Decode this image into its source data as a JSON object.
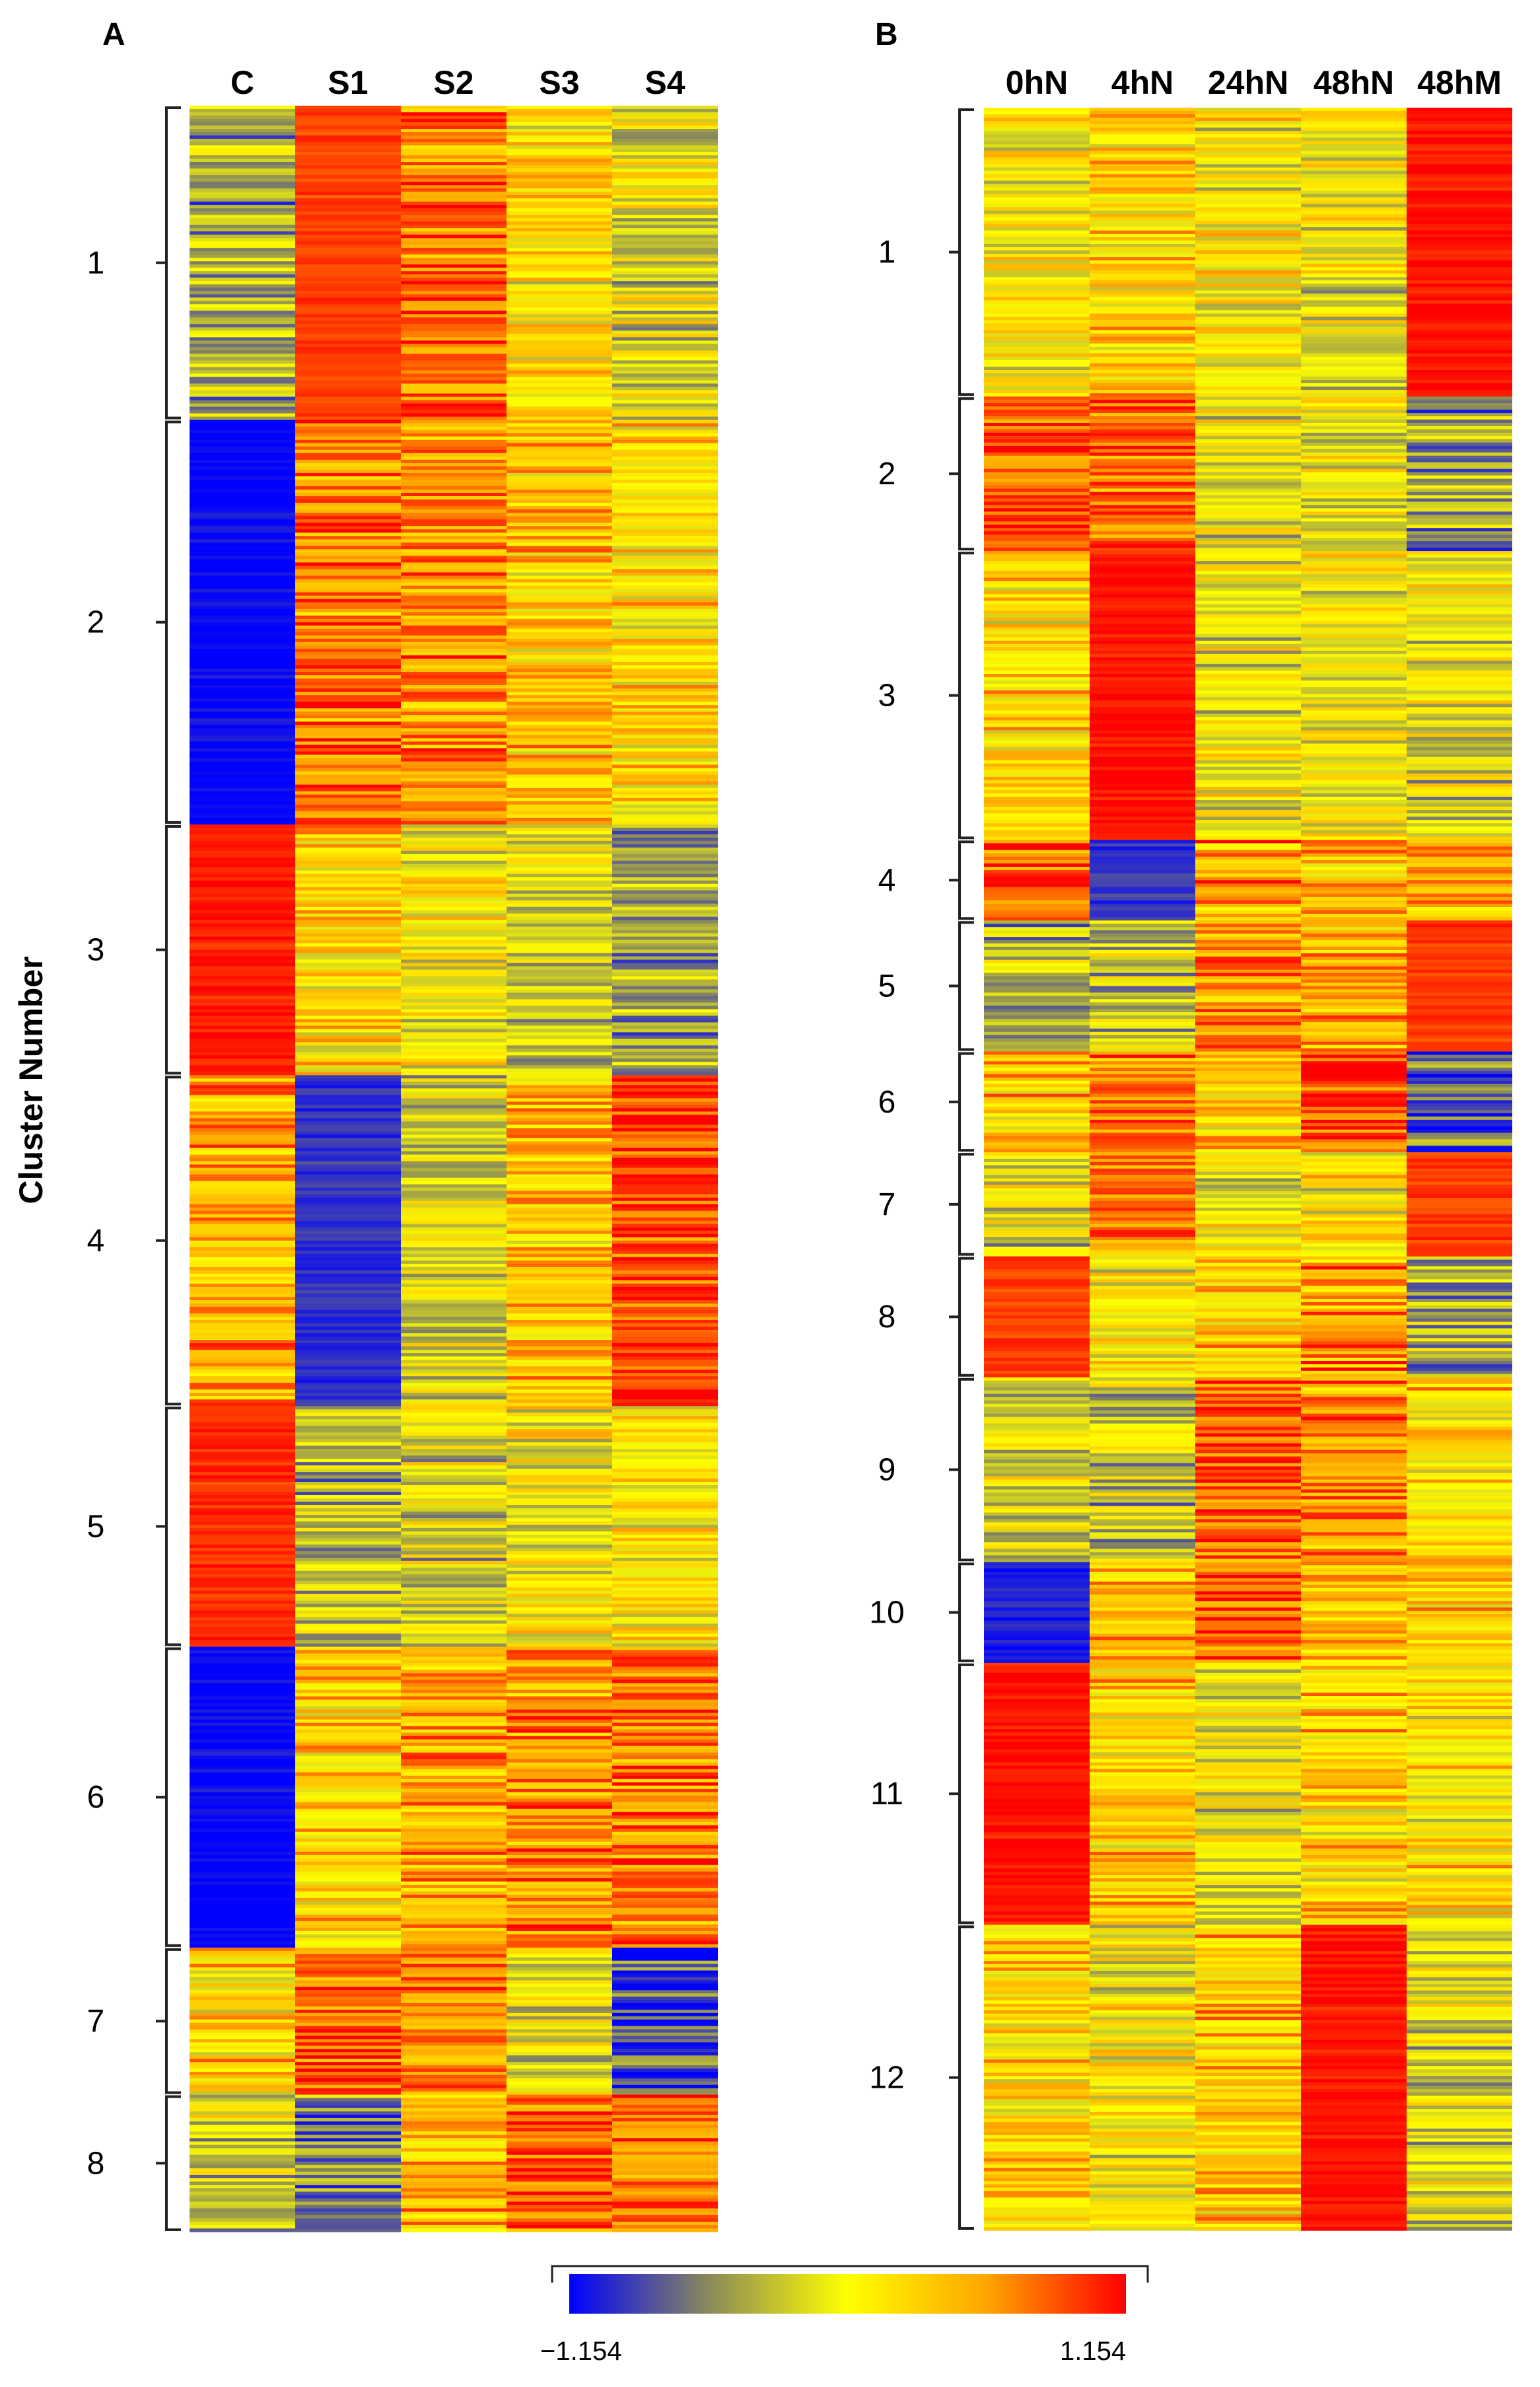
{
  "chart_data": [
    {
      "type": "heatmap",
      "panel_label": "A",
      "columns": [
        "C",
        "S1",
        "S2",
        "S3",
        "S4"
      ],
      "ylabel": "Cluster Number",
      "value_range": [
        -1.154,
        1.154
      ],
      "clusters": [
        {
          "label": "1",
          "rows": 470,
          "means": [
            -0.4,
            0.95,
            0.75,
            0.15,
            -0.15
          ]
        },
        {
          "label": "2",
          "rows": 605,
          "means": [
            -1.15,
            0.7,
            0.65,
            0.35,
            0.25
          ]
        },
        {
          "label": "3",
          "rows": 375,
          "means": [
            1.05,
            0.25,
            0.05,
            -0.2,
            -0.5
          ]
        },
        {
          "label": "4",
          "rows": 495,
          "means": [
            0.55,
            -0.95,
            -0.2,
            0.4,
            0.9
          ]
        },
        {
          "label": "5",
          "rows": 360,
          "means": [
            1.0,
            -0.35,
            -0.15,
            0.0,
            0.1
          ]
        },
        {
          "label": "6",
          "rows": 450,
          "means": [
            -1.15,
            0.3,
            0.5,
            0.65,
            0.7
          ]
        },
        {
          "label": "7",
          "rows": 220,
          "means": [
            0.3,
            0.85,
            0.6,
            -0.1,
            -0.9
          ]
        },
        {
          "label": "8",
          "rows": 205,
          "means": [
            -0.2,
            -0.6,
            0.4,
            0.8,
            0.75
          ]
        }
      ]
    },
    {
      "type": "heatmap",
      "panel_label": "B",
      "columns": [
        "0hN",
        "4hN",
        "24hN",
        "48hN",
        "48hM"
      ],
      "value_range": [
        -1.154,
        1.154
      ],
      "clusters": [
        {
          "label": "1",
          "rows": 430,
          "means": [
            0.1,
            0.3,
            0.05,
            -0.05,
            1.1
          ]
        },
        {
          "label": "2",
          "rows": 230,
          "means": [
            0.85,
            0.8,
            -0.1,
            -0.05,
            -0.45
          ]
        },
        {
          "label": "3",
          "rows": 430,
          "means": [
            0.25,
            1.1,
            -0.05,
            0.0,
            -0.1
          ]
        },
        {
          "label": "4",
          "rows": 120,
          "means": [
            0.9,
            -0.95,
            0.6,
            0.4,
            0.5
          ]
        },
        {
          "label": "5",
          "rows": 195,
          "means": [
            -0.35,
            -0.3,
            0.6,
            0.5,
            0.95
          ]
        },
        {
          "label": "6",
          "rows": 150,
          "means": [
            0.35,
            0.7,
            0.35,
            0.9,
            -0.8
          ]
        },
        {
          "label": "7",
          "rows": 155,
          "means": [
            -0.1,
            0.65,
            0.0,
            0.1,
            0.95
          ]
        },
        {
          "label": "8",
          "rows": 180,
          "means": [
            0.95,
            0.05,
            0.3,
            0.6,
            -0.4
          ]
        },
        {
          "label": "9",
          "rows": 275,
          "means": [
            -0.2,
            -0.3,
            0.85,
            0.65,
            0.25
          ]
        },
        {
          "label": "10",
          "rows": 150,
          "means": [
            -1.05,
            0.4,
            0.85,
            0.45,
            0.3
          ]
        },
        {
          "label": "11",
          "rows": 390,
          "means": [
            1.1,
            0.3,
            -0.05,
            0.25,
            0.15
          ]
        },
        {
          "label": "12",
          "rows": 455,
          "means": [
            0.2,
            0.05,
            0.35,
            1.1,
            -0.15
          ]
        }
      ]
    }
  ],
  "colorbar": {
    "min_label": "−1.154",
    "max_label": "1.154",
    "stops": [
      "#0000ff",
      "#8a8a5a",
      "#ffff00",
      "#ffa500",
      "#ff0000"
    ]
  }
}
